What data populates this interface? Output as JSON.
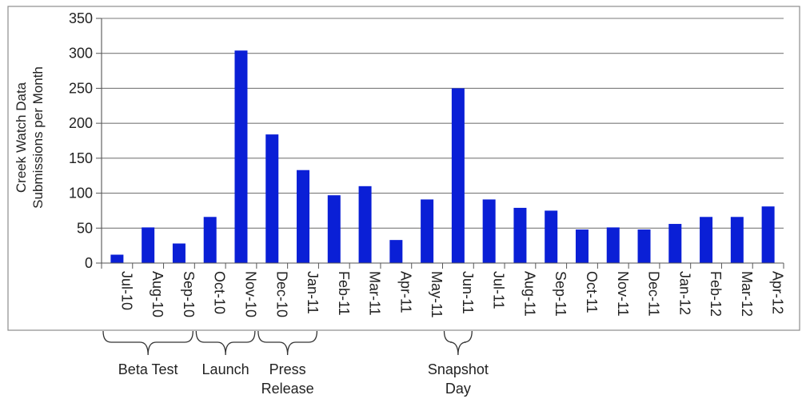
{
  "chart_data": {
    "type": "bar",
    "ylabel": "Creek Watch Data Submissions per Month",
    "ylabel_lines": [
      "Creek Watch Data",
      "Submissions per Month"
    ],
    "xlabel": "",
    "title": "",
    "ylim": [
      0,
      350
    ],
    "yticks": [
      0,
      50,
      100,
      150,
      200,
      250,
      300,
      350
    ],
    "ytick_labels": [
      "0",
      "50",
      "100",
      "150",
      "200",
      "250",
      "300",
      "350"
    ],
    "grid": true,
    "categories": [
      "Jul-10",
      "Aug-10",
      "Sep-10",
      "Oct-10",
      "Nov-10",
      "Dec-10",
      "Jan-11",
      "Feb-11",
      "Mar-11",
      "Apr-11",
      "May-11",
      "Jun-11",
      "Jul-11",
      "Aug-11",
      "Sep-11",
      "Oct-11",
      "Nov-11",
      "Dec-11",
      "Jan-12",
      "Feb-12",
      "Mar-12",
      "Apr-12"
    ],
    "values": [
      12,
      51,
      28,
      66,
      304,
      184,
      133,
      97,
      110,
      33,
      91,
      250,
      91,
      79,
      75,
      48,
      51,
      48,
      56,
      66,
      66,
      81
    ],
    "bar_color": "#0a1fd6",
    "annotations": [
      {
        "lines": [
          "Beta Test"
        ],
        "from_index": 0,
        "to_index": 2
      },
      {
        "lines": [
          "Launch"
        ],
        "from_index": 3,
        "to_index": 4
      },
      {
        "lines": [
          "Press",
          "Release"
        ],
        "from_index": 5,
        "to_index": 6
      },
      {
        "lines": [
          "Snapshot",
          "Day"
        ],
        "from_index": 11,
        "to_index": 11
      }
    ]
  }
}
